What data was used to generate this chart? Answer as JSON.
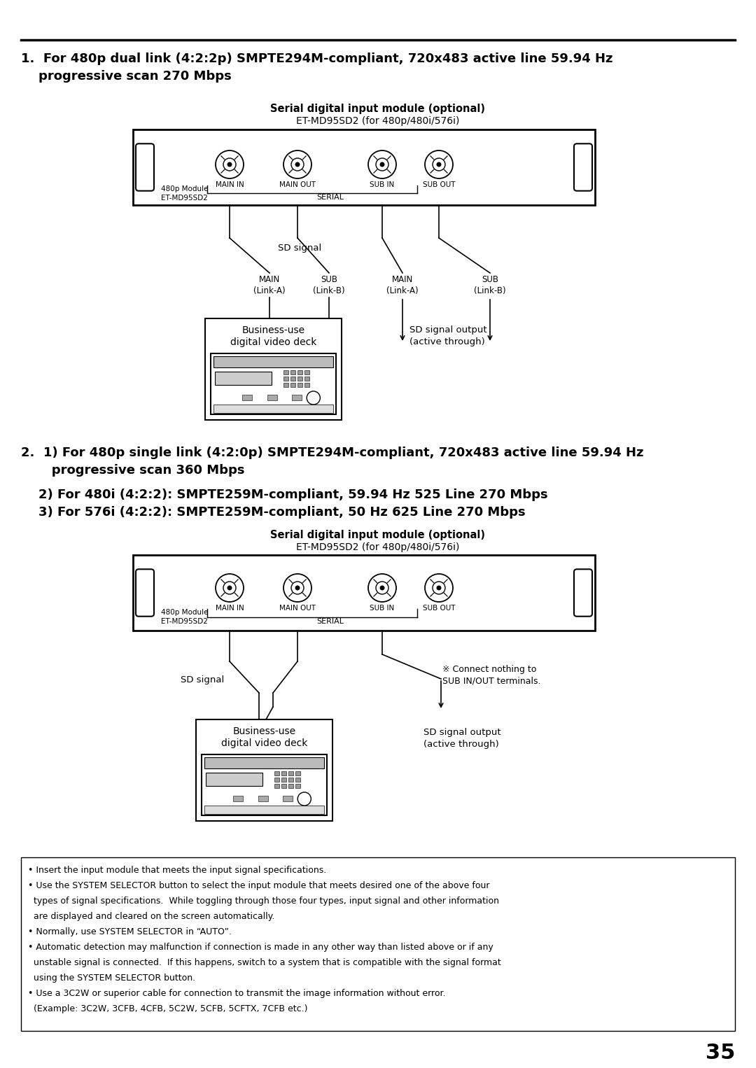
{
  "bg_color": "#ffffff",
  "page_number": "35",
  "section1_line1": "1.  For 480p dual link (4:2:2p) SMPTE294M-compliant, 720x483 active line 59.94 Hz",
  "section1_line2": "    progressive scan 270 Mbps",
  "section2_line1": "2.  1) For 480p single link (4:2:0p) SMPTE294M-compliant, 720x483 active line 59.94 Hz",
  "section2_line2": "       progressive scan 360 Mbps",
  "section2_line3": "    2) For 480i (4:2:2): SMPTE259M-compliant, 59.94 Hz 525 Line 270 Mbps",
  "section2_line4": "    3) For 576i (4:2:2): SMPTE259M-compliant, 50 Hz 625 Line 270 Mbps",
  "module_bold": "Serial digital input module (optional)",
  "module_normal": "ET-MD95SD2 (for 480p/480i/576i)",
  "conn_labels": [
    "MAIN IN",
    "MAIN OUT",
    "SUB IN",
    "SUB OUT"
  ],
  "chip1": "480p Module",
  "chip2": "ET-MD95SD2",
  "serial": "SERIAL",
  "sd_signal": "SD signal",
  "deck_line1": "Business-use",
  "deck_line2": "digital video deck",
  "link_d1": [
    "MAIN\n(Link-A)",
    "SUB\n(Link-B)",
    "MAIN\n(Link-A)",
    "SUB\n(Link-B)"
  ],
  "sd_output": "SD signal output\n(active through)",
  "connect_nothing": "※ Connect nothing to\nSUB IN/OUT terminals.",
  "notes": [
    "• Insert the input module that meets the input signal specifications.",
    "• Use the SYSTEM SELECTOR button to select the input module that meets desired one of the above four",
    "  types of signal specifications.  While toggling through those four types, input signal and other information",
    "  are displayed and cleared on the screen automatically.",
    "• Normally, use SYSTEM SELECTOR in “AUTO”.",
    "• Automatic detection may malfunction if connection is made in any other way than listed above or if any",
    "  unstable signal is connected.  If this happens, switch to a system that is compatible with the signal format",
    "  using the SYSTEM SELECTOR button.",
    "• Use a 3C2W or superior cable for connection to transmit the image information without error.",
    "  (Example: 3C2W, 3CFB, 4CFB, 5C2W, 5CFB, 5CFTX, 7CFB etc.)"
  ]
}
